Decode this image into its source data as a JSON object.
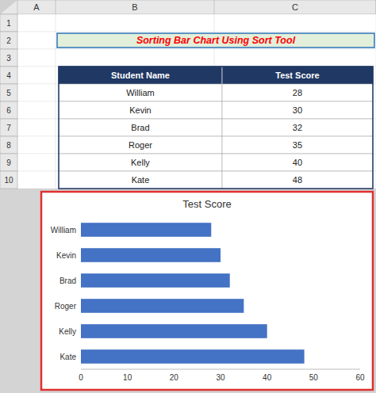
{
  "page_title": "Sorting Bar Chart Using Sort Tool",
  "sheet": {
    "columns": [
      "A",
      "B",
      "C"
    ],
    "rows": [
      "1",
      "2",
      "3",
      "4",
      "5",
      "6",
      "7",
      "8",
      "9",
      "10"
    ]
  },
  "table": {
    "columns": [
      "Student Name",
      "Test Score"
    ],
    "names": [
      "William",
      "Kevin",
      "Brad",
      "Roger",
      "Kelly",
      "Kate"
    ],
    "values": [
      28,
      30,
      32,
      35,
      40,
      48
    ]
  },
  "chart_data": {
    "type": "bar",
    "orientation": "horizontal",
    "title": "Test Score",
    "categories": [
      "Kate",
      "Kelly",
      "Roger",
      "Brad",
      "Kevin",
      "William"
    ],
    "values": [
      48,
      40,
      35,
      32,
      30,
      28
    ],
    "color": "#4472C4",
    "xlim": [
      0,
      60
    ],
    "xticks": [
      0,
      10,
      20,
      30,
      40,
      50,
      60
    ],
    "grid": false
  }
}
